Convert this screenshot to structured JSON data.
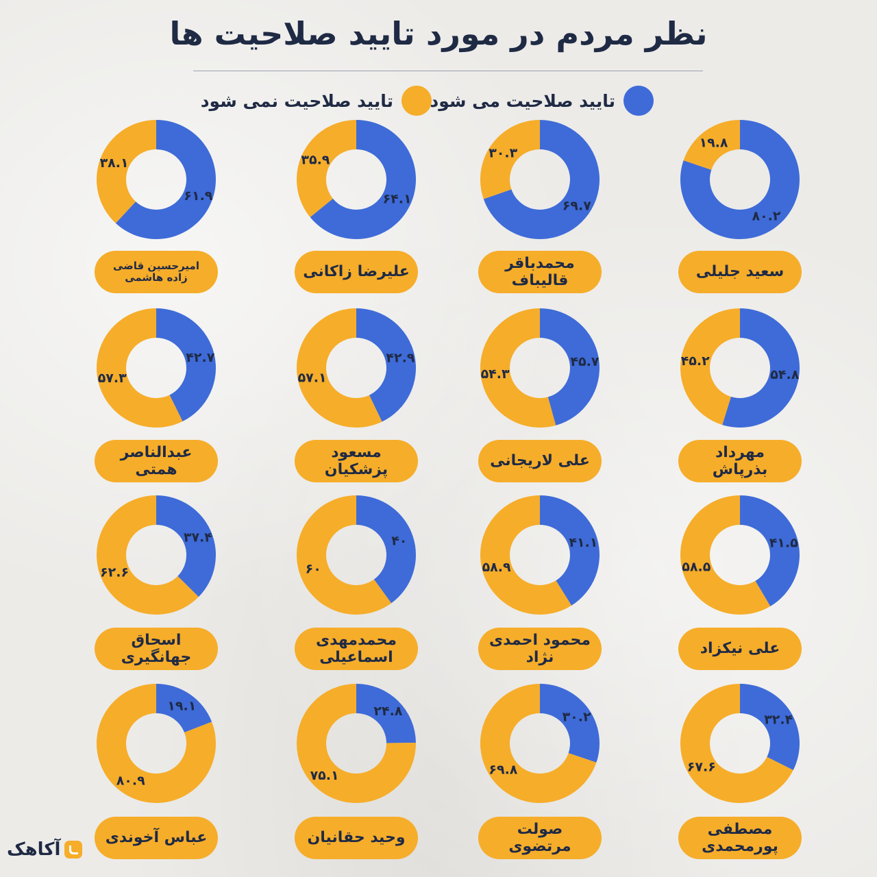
{
  "title": "نظر مردم در مورد تایید صلاحیت ها",
  "logo": {
    "text": "آکاهک",
    "icon": "akahak-logo-icon"
  },
  "colors": {
    "approve": "#3e6bd8",
    "reject": "#f6ad2a",
    "text": "#1f2a44",
    "pill": "#f6ad2a"
  },
  "legend": {
    "approve": "تایید صلاحیت می شود",
    "reject": "تایید صلاحیت نمی شود"
  },
  "chart_data": {
    "type": "pie",
    "variant": "donut",
    "title": "نظر مردم در مورد تایید صلاحیت ها",
    "series_names": [
      "تایید صلاحیت می شود",
      "تایید صلاحیت نمی شود"
    ],
    "legend_position": "top",
    "charts": [
      {
        "name": "سعید جلیلی",
        "approve": 80.2,
        "reject": 19.8,
        "approve_label": "۸۰.۲",
        "reject_label": "۱۹.۸"
      },
      {
        "name": "محمدباقر قالیباف",
        "approve": 69.7,
        "reject": 30.3,
        "approve_label": "۶۹.۷",
        "reject_label": "۳۰.۳"
      },
      {
        "name": "علیرضا زاکانی",
        "approve": 64.1,
        "reject": 35.9,
        "approve_label": "۶۴.۱",
        "reject_label": "۳۵.۹"
      },
      {
        "name": "امیرحسین قاضی زاده هاشمی",
        "approve": 61.9,
        "reject": 38.1,
        "approve_label": "۶۱.۹",
        "reject_label": "۳۸.۱"
      },
      {
        "name": "مهرداد بذرپاش",
        "approve": 54.8,
        "reject": 45.2,
        "approve_label": "۵۴.۸",
        "reject_label": "۴۵.۲"
      },
      {
        "name": "علی لاریجانی",
        "approve": 45.7,
        "reject": 54.3,
        "approve_label": "۴۵.۷",
        "reject_label": "۵۴.۳"
      },
      {
        "name": "مسعود پزشکیان",
        "approve": 42.9,
        "reject": 57.1,
        "approve_label": "۴۲.۹",
        "reject_label": "۵۷.۱"
      },
      {
        "name": "عبدالناصر همتی",
        "approve": 42.7,
        "reject": 57.3,
        "approve_label": "۴۲.۷",
        "reject_label": "۵۷.۳"
      },
      {
        "name": "علی نیکزاد",
        "approve": 41.5,
        "reject": 58.5,
        "approve_label": "۴۱.۵",
        "reject_label": "۵۸.۵"
      },
      {
        "name": "محمود احمدی نژاد",
        "approve": 41.1,
        "reject": 58.9,
        "approve_label": "۴۱.۱",
        "reject_label": "۵۸.۹"
      },
      {
        "name": "محمدمهدی اسماعیلی",
        "approve": 40,
        "reject": 60,
        "approve_label": "۴۰",
        "reject_label": "۶۰"
      },
      {
        "name": "اسحاق جهانگیری",
        "approve": 37.4,
        "reject": 62.6,
        "approve_label": "۳۷.۴",
        "reject_label": "۶۲.۶"
      },
      {
        "name": "مصطفی پورمحمدی",
        "approve": 32.4,
        "reject": 67.6,
        "approve_label": "۳۲.۴",
        "reject_label": "۶۷.۶"
      },
      {
        "name": "صولت مرتضوی",
        "approve": 30.2,
        "reject": 69.8,
        "approve_label": "۳۰.۲",
        "reject_label": "۶۹.۸"
      },
      {
        "name": "وحید حقانیان",
        "approve": 24.8,
        "reject": 75.1,
        "approve_label": "۲۴.۸",
        "reject_label": "۷۵.۱"
      },
      {
        "name": "عباس آخوندی",
        "approve": 19.1,
        "reject": 80.9,
        "approve_label": "۱۹.۱",
        "reject_label": "۸۰.۹"
      }
    ]
  }
}
